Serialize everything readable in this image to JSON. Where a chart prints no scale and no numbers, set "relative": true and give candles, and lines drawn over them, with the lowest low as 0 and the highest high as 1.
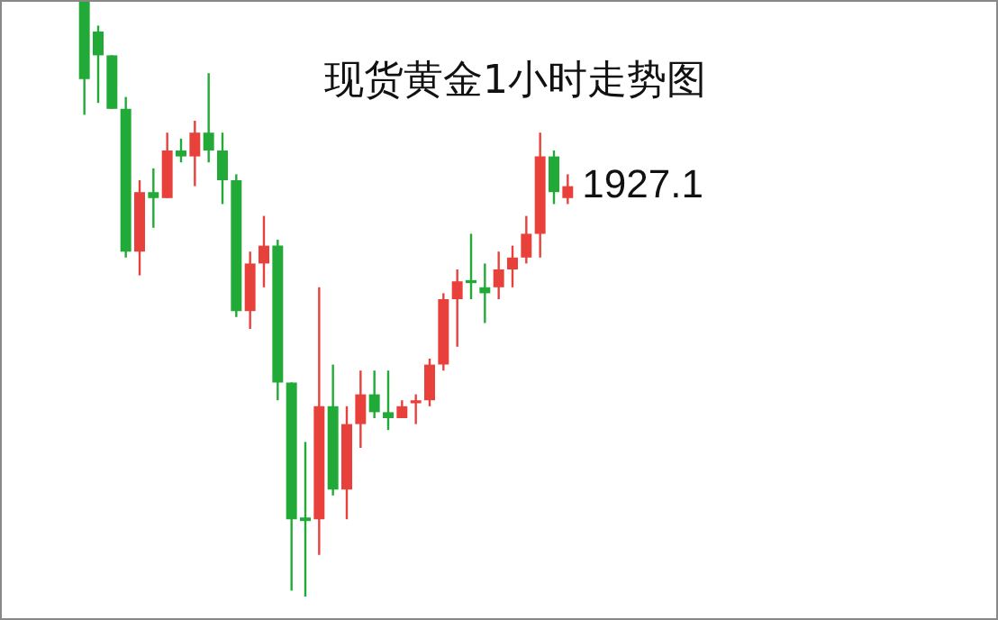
{
  "chart_data": {
    "type": "candlestick",
    "title": "现货黄金1小时走势图",
    "relative": true,
    "tick_labels": false,
    "categories": [
      null,
      null,
      null,
      null,
      null,
      null,
      null,
      null,
      null,
      null,
      null,
      null,
      null,
      null,
      null,
      null,
      null,
      null,
      null,
      null,
      null,
      null,
      null,
      null,
      null,
      null,
      null,
      null,
      null,
      null,
      null,
      null,
      null,
      null,
      null,
      null
    ],
    "ohlc": [
      [
        1.0,
        1.0,
        0.81,
        0.87
      ],
      [
        0.95,
        0.96,
        0.83,
        0.91
      ],
      [
        0.91,
        0.91,
        0.82,
        0.82
      ],
      [
        0.82,
        0.84,
        0.57,
        0.58
      ],
      [
        0.58,
        0.7,
        0.54,
        0.68
      ],
      [
        0.68,
        0.72,
        0.62,
        0.67
      ],
      [
        0.67,
        0.78,
        0.67,
        0.75
      ],
      [
        0.75,
        0.77,
        0.73,
        0.74
      ],
      [
        0.74,
        0.8,
        0.69,
        0.78
      ],
      [
        0.78,
        0.88,
        0.73,
        0.75
      ],
      [
        0.75,
        0.78,
        0.66,
        0.7
      ],
      [
        0.7,
        0.71,
        0.47,
        0.48
      ],
      [
        0.48,
        0.58,
        0.45,
        0.56
      ],
      [
        0.56,
        0.64,
        0.52,
        0.59
      ],
      [
        0.59,
        0.6,
        0.33,
        0.36
      ],
      [
        0.36,
        0.36,
        0.01,
        0.13
      ],
      [
        0.133,
        0.26,
        0.0,
        0.127
      ],
      [
        0.13,
        0.52,
        0.07,
        0.32
      ],
      [
        0.32,
        0.39,
        0.17,
        0.18
      ],
      [
        0.18,
        0.32,
        0.13,
        0.29
      ],
      [
        0.29,
        0.38,
        0.25,
        0.34
      ],
      [
        0.34,
        0.38,
        0.3,
        0.31
      ],
      [
        0.31,
        0.38,
        0.28,
        0.3
      ],
      [
        0.3,
        0.33,
        0.3,
        0.32
      ],
      [
        0.325,
        0.34,
        0.29,
        0.33
      ],
      [
        0.33,
        0.4,
        0.32,
        0.39
      ],
      [
        0.39,
        0.51,
        0.38,
        0.5
      ],
      [
        0.5,
        0.55,
        0.42,
        0.53
      ],
      [
        0.532,
        0.61,
        0.5,
        0.527
      ],
      [
        0.52,
        0.56,
        0.46,
        0.51
      ],
      [
        0.52,
        0.58,
        0.5,
        0.55
      ],
      [
        0.55,
        0.59,
        0.52,
        0.57
      ],
      [
        0.57,
        0.64,
        0.56,
        0.61
      ],
      [
        0.61,
        0.78,
        0.57,
        0.74
      ],
      [
        0.74,
        0.75,
        0.66,
        0.68
      ],
      [
        0.67,
        0.71,
        0.66,
        0.69
      ]
    ],
    "annotations": [
      "1927.1"
    ]
  }
}
